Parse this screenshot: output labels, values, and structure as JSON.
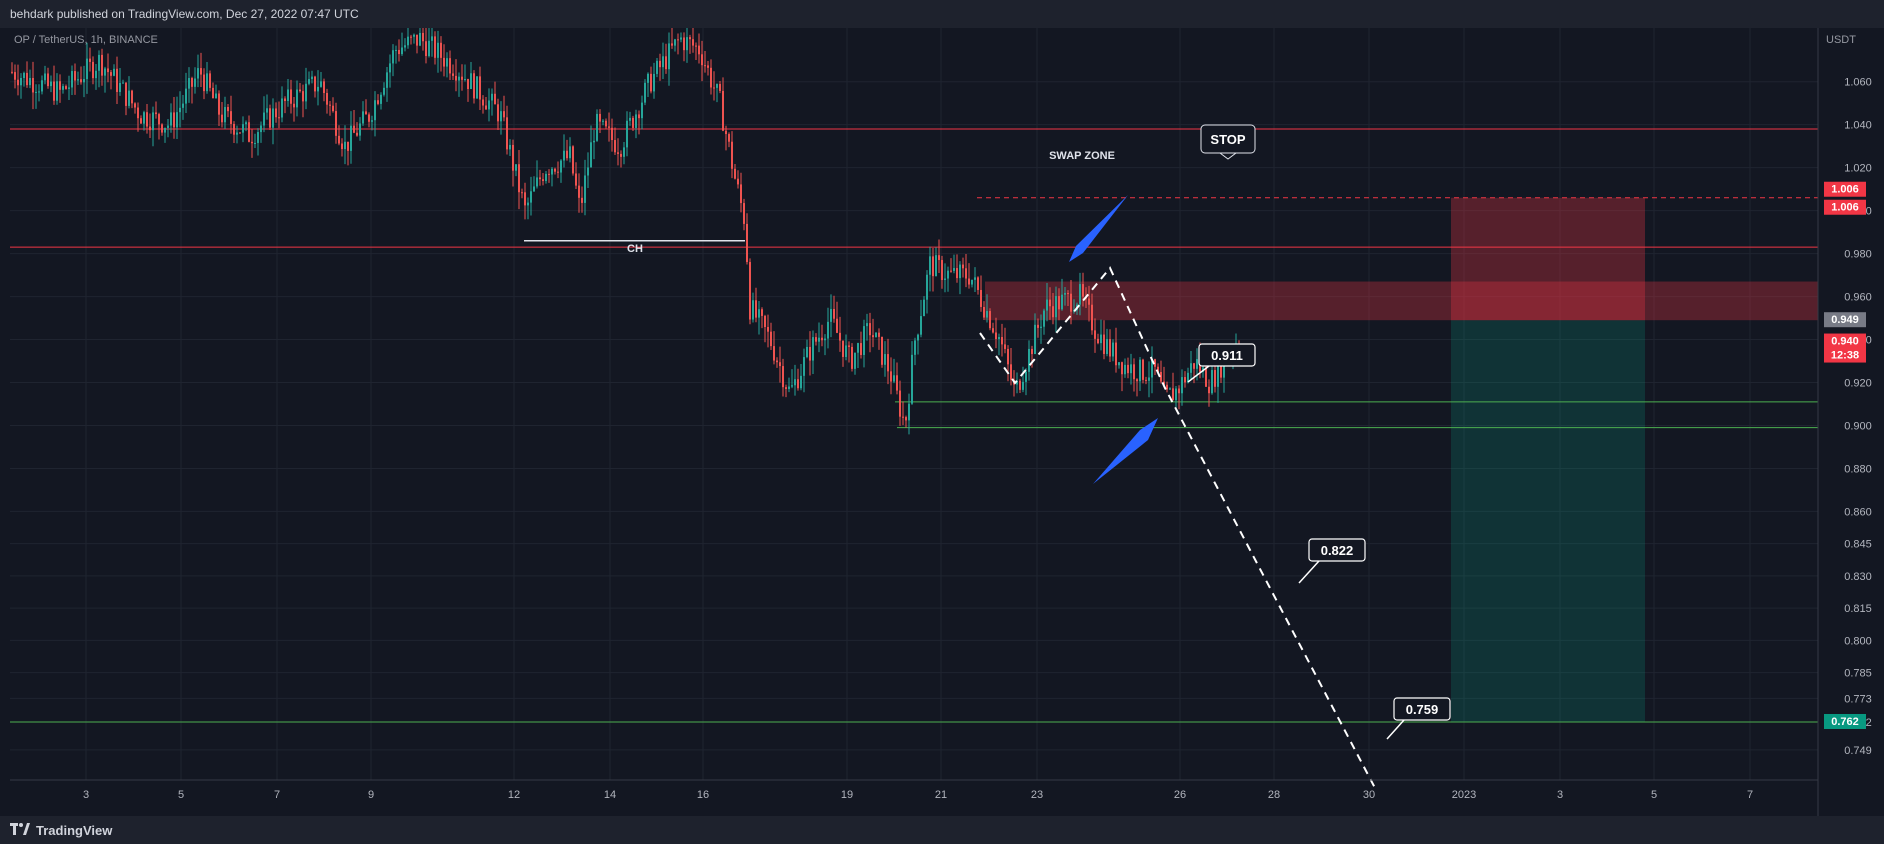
{
  "publish_line": "behdark published on TradingView.com, Dec 27, 2022 07:47 UTC",
  "footer_brand": "TradingView",
  "chart_data": {
    "type": "candlestick",
    "symbol": "OP / TetherUS, 1h, BINANCE",
    "currency": "USDT",
    "ylim": [
      0.735,
      1.085
    ],
    "y_ticks": [
      1.06,
      1.04,
      1.02,
      1.0,
      0.98,
      0.96,
      0.94,
      0.92,
      0.9,
      0.88,
      0.86,
      0.845,
      0.83,
      0.815,
      0.8,
      0.785,
      0.773,
      0.762,
      0.749
    ],
    "x_ticks": [
      "3",
      "5",
      "7",
      "9",
      "12",
      "14",
      "16",
      "19",
      "21",
      "23",
      "26",
      "28",
      "30",
      "2023",
      "3",
      "5",
      "7"
    ],
    "horizontal_levels": [
      {
        "price": 1.038,
        "color": "#f23645"
      },
      {
        "price": 0.983,
        "color": "#f23645"
      },
      {
        "price": 0.911,
        "color": "#4caf50"
      },
      {
        "price": 0.899,
        "color": "#4caf50"
      },
      {
        "price": 0.762,
        "color": "#4caf50"
      }
    ],
    "stop_level": 1.006,
    "price_labels": [
      {
        "text": "1.006",
        "bg": "#f23645"
      },
      {
        "text": "1.006",
        "bg": "#f23645"
      },
      {
        "text": "0.949",
        "bg": "#787b86"
      },
      {
        "text": "0.940",
        "bg": "#f23645"
      },
      {
        "text": "12:38",
        "bg": "#f23645"
      },
      {
        "text": "0.762",
        "bg": "#089981"
      }
    ],
    "annotations": [
      {
        "text": "SWAP ZONE"
      },
      {
        "text": "STOP"
      },
      {
        "text": "CH"
      },
      {
        "text": "0.911"
      },
      {
        "text": "0.822"
      },
      {
        "text": "0.759"
      }
    ],
    "swap_zone": [
      0.949,
      0.967
    ],
    "position": {
      "entry": 0.949,
      "stop": 1.006,
      "target": 0.762
    },
    "colors": {
      "up": "#26a69a",
      "down": "#ef5350",
      "grid": "#1f2430",
      "bg": "#131722"
    }
  }
}
